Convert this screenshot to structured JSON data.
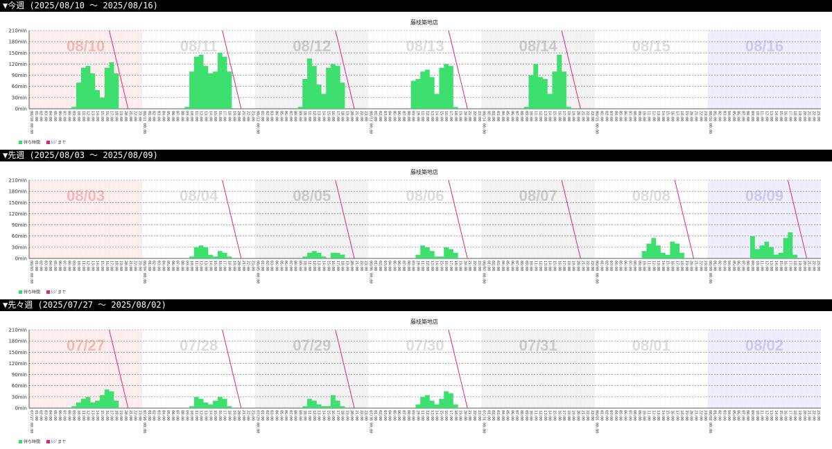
{
  "sections": [
    {
      "header": "▼今週 (2025/08/10 ～ 2025/08/16)",
      "chart_data": {
        "type": "area",
        "title": "藤枝築地店",
        "ylim": [
          0,
          210
        ],
        "y_ticks": [
          "0min",
          "30min",
          "60min",
          "90min",
          "120min",
          "150min",
          "180min",
          "210min"
        ],
        "hour_ticks": [
          "00:00",
          "01:00",
          "02:00",
          "03:00",
          "04:00",
          "05:00",
          "06:00",
          "07:00",
          "08:00",
          "09:00",
          "10:00",
          "11:00",
          "12:00",
          "13:00",
          "14:00",
          "15:00",
          "16:00",
          "17:00",
          "18:00",
          "19:00",
          "20:00",
          "21:00",
          "22:00",
          "23:00"
        ],
        "days": [
          {
            "date": "08/10",
            "band": "#fdeeee",
            "label_color": "#f4b5b5",
            "x_label": "08/10 00:00",
            "waits": [
              0,
              0,
              0,
              0,
              0,
              0,
              0,
              0,
              0,
              5,
              70,
              110,
              115,
              95,
              50,
              30,
              110,
              125,
              95,
              0,
              0,
              0,
              0,
              0
            ],
            "until_hour": [
              17,
              21
            ]
          },
          {
            "date": "08/11",
            "band": "#ffffff",
            "label_color": "#dcdcdc",
            "x_label": "08/11 00:00",
            "waits": [
              0,
              0,
              0,
              0,
              0,
              0,
              0,
              0,
              0,
              5,
              100,
              140,
              145,
              115,
              95,
              100,
              150,
              140,
              100,
              0,
              0,
              0,
              0,
              0
            ],
            "until_hour": [
              17,
              21
            ]
          },
          {
            "date": "08/12",
            "band": "#f2f2f2",
            "label_color": "#c8c8c8",
            "x_label": "08/12 00:00",
            "waits": [
              0,
              0,
              0,
              0,
              0,
              0,
              0,
              0,
              0,
              5,
              80,
              135,
              115,
              65,
              40,
              110,
              120,
              115,
              70,
              0,
              0,
              0,
              0,
              0
            ],
            "until_hour": [
              17,
              21
            ]
          },
          {
            "date": "08/13",
            "band": "#ffffff",
            "label_color": "#dcdcdc",
            "x_label": "08/13 00:00",
            "waits": [
              0,
              0,
              0,
              0,
              0,
              0,
              0,
              0,
              0,
              75,
              80,
              100,
              105,
              85,
              40,
              110,
              120,
              115,
              5,
              0,
              0,
              0,
              0,
              0
            ],
            "until_hour": [
              17,
              21
            ]
          },
          {
            "date": "08/14",
            "band": "#f2f2f2",
            "label_color": "#c8c8c8",
            "x_label": "08/14 00:00",
            "waits": [
              0,
              0,
              0,
              0,
              0,
              0,
              0,
              0,
              0,
              5,
              90,
              120,
              85,
              80,
              40,
              100,
              145,
              100,
              5,
              0,
              0,
              0,
              0,
              0
            ],
            "until_hour": [
              17,
              21
            ]
          },
          {
            "date": "08/15",
            "band": "#ffffff",
            "label_color": "#dcdcdc",
            "x_label": "08/15 00:00",
            "waits": [
              0,
              0,
              0,
              0,
              0,
              0,
              0,
              0,
              0,
              0,
              0,
              0,
              0,
              0,
              0,
              0,
              0,
              0,
              0,
              0,
              0,
              0,
              0,
              0
            ],
            "until_hour": null
          },
          {
            "date": "08/16",
            "band": "#eeeefc",
            "label_color": "#c8c8f4",
            "x_label": "08/16 00:00",
            "waits": [
              0,
              0,
              0,
              0,
              0,
              0,
              0,
              0,
              0,
              0,
              0,
              0,
              0,
              0,
              0,
              0,
              0,
              0,
              0,
              0,
              0,
              0,
              0,
              0
            ],
            "until_hour": null
          }
        ],
        "legend": [
          {
            "label": "待ち時間",
            "color": "#33dd66"
          },
          {
            "label": "ﾚｼﾞまで",
            "color": "#e0247a"
          }
        ]
      }
    },
    {
      "header": "▼先週 (2025/08/03 ～ 2025/08/09)",
      "chart_data": {
        "type": "area",
        "title": "藤枝築地店",
        "ylim": [
          0,
          210
        ],
        "y_ticks": [
          "0min",
          "30min",
          "60min",
          "90min",
          "120min",
          "150min",
          "180min",
          "210min"
        ],
        "hour_ticks": [
          "00:00",
          "01:00",
          "02:00",
          "03:00",
          "04:00",
          "05:00",
          "06:00",
          "07:00",
          "08:00",
          "09:00",
          "10:00",
          "11:00",
          "12:00",
          "13:00",
          "14:00",
          "15:00",
          "16:00",
          "17:00",
          "18:00",
          "19:00",
          "20:00",
          "21:00",
          "22:00",
          "23:00"
        ],
        "days": [
          {
            "date": "08/03",
            "band": "#fdeeee",
            "label_color": "#f4b5b5",
            "x_label": "08/03 00:00",
            "waits": [
              0,
              0,
              0,
              0,
              0,
              0,
              0,
              0,
              0,
              0,
              0,
              0,
              0,
              0,
              0,
              0,
              0,
              0,
              0,
              0,
              0,
              0,
              0,
              0
            ],
            "until_hour": null
          },
          {
            "date": "08/04",
            "band": "#ffffff",
            "label_color": "#dcdcdc",
            "x_label": "08/04 00:00",
            "waits": [
              0,
              0,
              0,
              0,
              0,
              0,
              0,
              0,
              0,
              0,
              5,
              30,
              35,
              30,
              10,
              5,
              20,
              15,
              5,
              0,
              0,
              0,
              0,
              0
            ],
            "until_hour": [
              17,
              21
            ]
          },
          {
            "date": "08/05",
            "band": "#f2f2f2",
            "label_color": "#c8c8c8",
            "x_label": "08/05 00:00",
            "waits": [
              0,
              0,
              0,
              0,
              0,
              0,
              0,
              0,
              0,
              0,
              5,
              15,
              20,
              15,
              5,
              0,
              15,
              15,
              10,
              0,
              0,
              0,
              0,
              0
            ],
            "until_hour": [
              17,
              21
            ]
          },
          {
            "date": "08/06",
            "band": "#ffffff",
            "label_color": "#dcdcdc",
            "x_label": "08/06 00:00",
            "waits": [
              0,
              0,
              0,
              0,
              0,
              0,
              0,
              0,
              0,
              0,
              10,
              35,
              30,
              20,
              5,
              5,
              30,
              25,
              15,
              0,
              0,
              0,
              0,
              0
            ],
            "until_hour": [
              17,
              21
            ]
          },
          {
            "date": "08/07",
            "band": "#f2f2f2",
            "label_color": "#c8c8c8",
            "x_label": "08/07 00:00",
            "waits": [
              0,
              0,
              0,
              0,
              0,
              0,
              0,
              0,
              0,
              0,
              0,
              0,
              0,
              0,
              0,
              0,
              0,
              0,
              0,
              0,
              0,
              0,
              0,
              0
            ],
            "until_hour": [
              17,
              21
            ]
          },
          {
            "date": "08/08",
            "band": "#ffffff",
            "label_color": "#dcdcdc",
            "x_label": "08/08 00:00",
            "waits": [
              0,
              0,
              0,
              0,
              0,
              0,
              0,
              0,
              0,
              0,
              20,
              40,
              55,
              35,
              15,
              10,
              45,
              40,
              15,
              0,
              0,
              0,
              0,
              0
            ],
            "until_hour": [
              17,
              21
            ]
          },
          {
            "date": "08/09",
            "band": "#eeeefc",
            "label_color": "#c8c8f4",
            "x_label": "08/09 00:00",
            "waits": [
              0,
              0,
              0,
              0,
              0,
              0,
              0,
              0,
              0,
              60,
              25,
              35,
              45,
              30,
              10,
              15,
              55,
              70,
              10,
              0,
              0,
              0,
              0,
              0
            ],
            "until_hour": [
              17,
              21
            ]
          }
        ],
        "legend": [
          {
            "label": "待ち時間",
            "color": "#33dd66"
          },
          {
            "label": "ﾚｼﾞまで",
            "color": "#e0247a"
          }
        ]
      }
    },
    {
      "header": "▼先々週 (2025/07/27 ～ 2025/08/02)",
      "chart_data": {
        "type": "area",
        "title": "藤枝築地店",
        "ylim": [
          0,
          210
        ],
        "y_ticks": [
          "0min",
          "30min",
          "60min",
          "90min",
          "120min",
          "150min",
          "180min",
          "210min"
        ],
        "hour_ticks": [
          "00:00",
          "01:00",
          "02:00",
          "03:00",
          "04:00",
          "05:00",
          "06:00",
          "07:00",
          "08:00",
          "09:00",
          "10:00",
          "11:00",
          "12:00",
          "13:00",
          "14:00",
          "15:00",
          "16:00",
          "17:00",
          "18:00",
          "19:00",
          "20:00",
          "21:00",
          "22:00",
          "23:00"
        ],
        "days": [
          {
            "date": "07/27",
            "band": "#fdeeee",
            "label_color": "#f4b5b5",
            "x_label": "07/27 00:00",
            "waits": [
              0,
              0,
              0,
              0,
              0,
              0,
              0,
              0,
              0,
              5,
              15,
              25,
              30,
              15,
              20,
              35,
              50,
              45,
              20,
              0,
              0,
              0,
              0,
              0
            ],
            "until_hour": [
              17,
              21
            ]
          },
          {
            "date": "07/28",
            "band": "#ffffff",
            "label_color": "#dcdcdc",
            "x_label": "07/28 00:00",
            "waits": [
              0,
              0,
              0,
              0,
              0,
              0,
              0,
              0,
              0,
              0,
              5,
              30,
              25,
              15,
              10,
              20,
              30,
              25,
              5,
              0,
              0,
              0,
              0,
              0
            ],
            "until_hour": [
              17,
              21
            ]
          },
          {
            "date": "07/29",
            "band": "#f2f2f2",
            "label_color": "#c8c8c8",
            "x_label": "07/29 00:00",
            "waits": [
              0,
              0,
              0,
              0,
              0,
              0,
              0,
              0,
              0,
              0,
              5,
              25,
              20,
              10,
              5,
              5,
              35,
              20,
              5,
              0,
              0,
              0,
              0,
              0
            ],
            "until_hour": [
              17,
              21
            ]
          },
          {
            "date": "07/30",
            "band": "#ffffff",
            "label_color": "#dcdcdc",
            "x_label": "07/30 00:00",
            "waits": [
              0,
              0,
              0,
              0,
              0,
              0,
              0,
              0,
              0,
              0,
              10,
              30,
              35,
              20,
              10,
              25,
              45,
              40,
              10,
              0,
              0,
              0,
              0,
              0
            ],
            "until_hour": [
              17,
              21
            ]
          },
          {
            "date": "07/31",
            "band": "#f2f2f2",
            "label_color": "#c8c8c8",
            "x_label": "07/31 00:00",
            "waits": [
              0,
              0,
              0,
              0,
              0,
              0,
              0,
              0,
              0,
              0,
              0,
              0,
              0,
              0,
              0,
              0,
              0,
              0,
              0,
              0,
              0,
              0,
              0,
              0
            ],
            "until_hour": null
          },
          {
            "date": "08/01",
            "band": "#ffffff",
            "label_color": "#dcdcdc",
            "x_label": "08/01 00:00",
            "waits": [
              0,
              0,
              0,
              0,
              0,
              0,
              0,
              0,
              0,
              0,
              0,
              0,
              0,
              0,
              0,
              0,
              0,
              0,
              0,
              0,
              0,
              0,
              0,
              0
            ],
            "until_hour": null
          },
          {
            "date": "08/02",
            "band": "#eeeefc",
            "label_color": "#c8c8f4",
            "x_label": "08/02 00:00",
            "waits": [
              0,
              0,
              0,
              0,
              0,
              0,
              0,
              0,
              0,
              0,
              0,
              0,
              0,
              0,
              0,
              0,
              0,
              0,
              0,
              0,
              0,
              0,
              0,
              0
            ],
            "until_hour": null
          }
        ],
        "legend": [
          {
            "label": "待ち時間",
            "color": "#33dd66"
          },
          {
            "label": "ﾚｼﾞまで",
            "color": "#e0247a"
          }
        ]
      }
    }
  ]
}
